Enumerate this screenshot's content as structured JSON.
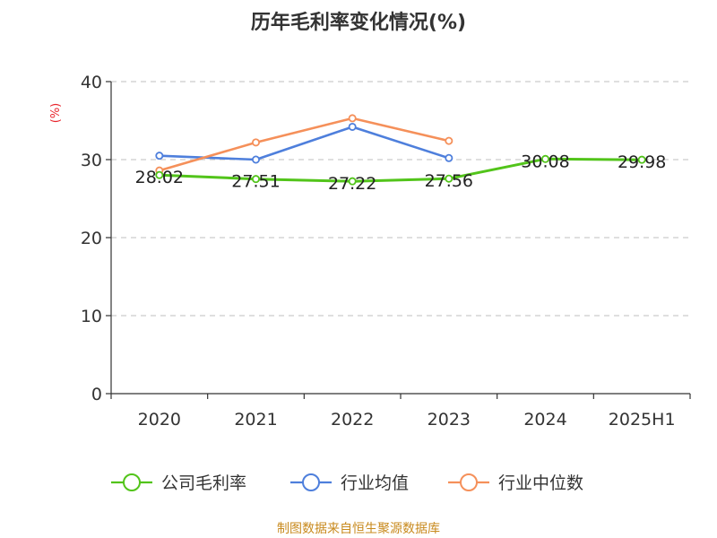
{
  "chart_data": {
    "type": "line",
    "title": "历年毛利率变化情况(%)",
    "ylabel": "(%)",
    "ylim": [
      0,
      40
    ],
    "yticks": [
      0,
      10,
      20,
      30,
      40
    ],
    "grid": true,
    "legend_position": "bottom",
    "categories": [
      "2020",
      "2021",
      "2022",
      "2023",
      "2024",
      "2025H1"
    ],
    "series": [
      {
        "name": "公司毛利率",
        "color": "#52c41a",
        "values": [
          28.02,
          27.51,
          27.22,
          27.56,
          30.08,
          29.98
        ],
        "labels": [
          "28.02",
          "27.51",
          "27.22",
          "27.56",
          "30.08",
          "29.98"
        ]
      },
      {
        "name": "行业均值",
        "color": "#4e7fdc",
        "values": [
          30.5,
          30.0,
          34.2,
          30.2,
          null,
          null
        ]
      },
      {
        "name": "行业中位数",
        "color": "#f5905a",
        "values": [
          28.6,
          32.2,
          35.3,
          32.4,
          null,
          null
        ]
      }
    ]
  },
  "footer": {
    "source": "制图数据来自恒生聚源数据库"
  }
}
